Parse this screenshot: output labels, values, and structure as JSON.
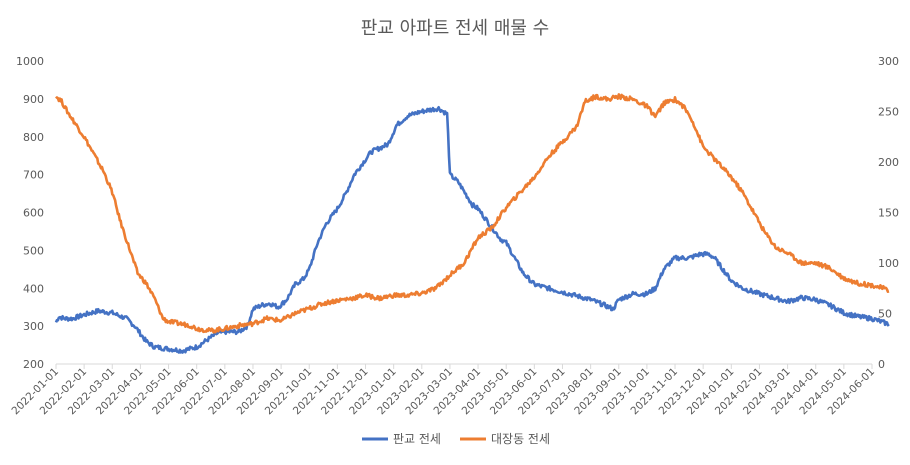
{
  "chart_data": {
    "type": "line",
    "title": "판교 아파트 전세 매물 수",
    "x_labels": [
      "2022-01-01",
      "2022-02-01",
      "2022-03-01",
      "2022-04-01",
      "2022-05-01",
      "2022-06-01",
      "2022-07-01",
      "2022-08-01",
      "2022-09-01",
      "2022-10-01",
      "2022-11-01",
      "2022-12-01",
      "2023-01-01",
      "2023-02-01",
      "2023-03-01",
      "2023-04-01",
      "2023-05-01",
      "2023-06-01",
      "2023-07-01",
      "2023-08-01",
      "2023-09-01",
      "2023-10-01",
      "2023-11-01",
      "2023-12-01",
      "2024-01-01",
      "2024-02-01",
      "2024-03-01",
      "2024-04-01",
      "2024-05-01",
      "2024-06-01"
    ],
    "y_left": {
      "min": 200,
      "max": 1000,
      "ticks": [
        "200",
        "300",
        "400",
        "500",
        "600",
        "700",
        "800",
        "900",
        "1000"
      ]
    },
    "y_right": {
      "min": 0,
      "max": 300,
      "ticks": [
        "0",
        "50",
        "100",
        "150",
        "200",
        "250",
        "300"
      ]
    },
    "grid": false,
    "legend_position": "bottom",
    "colors": {
      "pangyo": "#4472C4",
      "daejang": "#ED7D31",
      "axis_text": "#595959",
      "title": "#595959"
    },
    "series": [
      {
        "name": "판교 전세",
        "axis": "left",
        "key_points": [
          [
            0,
            310
          ],
          [
            0.1,
            325
          ],
          [
            0.3,
            320
          ],
          [
            0.6,
            320
          ],
          [
            1.0,
            330
          ],
          [
            1.5,
            340
          ],
          [
            2.0,
            335
          ],
          [
            2.5,
            320
          ],
          [
            2.8,
            300
          ],
          [
            3.0,
            280
          ],
          [
            3.2,
            260
          ],
          [
            3.5,
            245
          ],
          [
            4.0,
            240
          ],
          [
            4.5,
            235
          ],
          [
            5.0,
            245
          ],
          [
            5.4,
            265
          ],
          [
            5.7,
            280
          ],
          [
            6.0,
            285
          ],
          [
            6.5,
            285
          ],
          [
            6.8,
            300
          ],
          [
            7.0,
            345
          ],
          [
            7.3,
            355
          ],
          [
            7.6,
            360
          ],
          [
            7.9,
            350
          ],
          [
            8.2,
            370
          ],
          [
            8.5,
            410
          ],
          [
            8.8,
            425
          ],
          [
            9.0,
            450
          ],
          [
            9.3,
            520
          ],
          [
            9.6,
            570
          ],
          [
            10.0,
            610
          ],
          [
            10.3,
            650
          ],
          [
            10.6,
            700
          ],
          [
            10.9,
            730
          ],
          [
            11.2,
            760
          ],
          [
            11.5,
            770
          ],
          [
            11.8,
            780
          ],
          [
            12.1,
            830
          ],
          [
            12.5,
            855
          ],
          [
            12.9,
            865
          ],
          [
            13.2,
            870
          ],
          [
            13.6,
            875
          ],
          [
            13.9,
            860
          ],
          [
            14.0,
            700
          ],
          [
            14.3,
            680
          ],
          [
            14.8,
            620
          ],
          [
            15.0,
            610
          ],
          [
            15.4,
            570
          ],
          [
            15.8,
            530
          ],
          [
            16.0,
            520
          ],
          [
            16.3,
            480
          ],
          [
            16.6,
            440
          ],
          [
            17.0,
            410
          ],
          [
            17.5,
            400
          ],
          [
            18.0,
            390
          ],
          [
            18.5,
            380
          ],
          [
            19.0,
            370
          ],
          [
            19.5,
            355
          ],
          [
            19.8,
            345
          ],
          [
            20.0,
            370
          ],
          [
            20.5,
            385
          ],
          [
            21.0,
            385
          ],
          [
            21.3,
            400
          ],
          [
            21.6,
            450
          ],
          [
            22.0,
            480
          ],
          [
            22.5,
            480
          ],
          [
            22.9,
            490
          ],
          [
            23.2,
            490
          ],
          [
            23.4,
            480
          ],
          [
            23.7,
            450
          ],
          [
            24.0,
            420
          ],
          [
            24.4,
            400
          ],
          [
            25.0,
            385
          ],
          [
            25.5,
            375
          ],
          [
            26.0,
            365
          ],
          [
            26.5,
            375
          ],
          [
            27.0,
            370
          ],
          [
            27.5,
            355
          ],
          [
            28.0,
            335
          ],
          [
            28.5,
            325
          ],
          [
            29.0,
            320
          ],
          [
            29.4,
            310
          ],
          [
            29.6,
            305
          ]
        ]
      },
      {
        "name": "대장동 전세",
        "axis": "right",
        "key_points": [
          [
            0,
            265
          ],
          [
            0.2,
            260
          ],
          [
            0.4,
            250
          ],
          [
            1.0,
            225
          ],
          [
            1.3,
            210
          ],
          [
            1.7,
            190
          ],
          [
            2.0,
            170
          ],
          [
            2.3,
            140
          ],
          [
            2.6,
            115
          ],
          [
            2.9,
            90
          ],
          [
            3.2,
            80
          ],
          [
            3.5,
            65
          ],
          [
            3.8,
            45
          ],
          [
            4.0,
            42
          ],
          [
            4.4,
            40
          ],
          [
            4.8,
            38
          ],
          [
            5.0,
            35
          ],
          [
            5.5,
            33
          ],
          [
            6.0,
            35
          ],
          [
            6.5,
            38
          ],
          [
            7.0,
            40
          ],
          [
            7.5,
            45
          ],
          [
            8.0,
            43
          ],
          [
            8.5,
            50
          ],
          [
            9.0,
            55
          ],
          [
            9.5,
            60
          ],
          [
            10.0,
            63
          ],
          [
            10.5,
            65
          ],
          [
            11.0,
            68
          ],
          [
            11.5,
            65
          ],
          [
            12.0,
            68
          ],
          [
            12.5,
            68
          ],
          [
            13.0,
            70
          ],
          [
            13.5,
            75
          ],
          [
            14.0,
            88
          ],
          [
            14.5,
            100
          ],
          [
            15.0,
            125
          ],
          [
            15.5,
            135
          ],
          [
            16.0,
            155
          ],
          [
            16.5,
            170
          ],
          [
            17.0,
            185
          ],
          [
            17.5,
            205
          ],
          [
            18.0,
            220
          ],
          [
            18.5,
            235
          ],
          [
            18.8,
            260
          ],
          [
            19.2,
            265
          ],
          [
            19.6,
            262
          ],
          [
            20.0,
            265
          ],
          [
            20.5,
            262
          ],
          [
            21.0,
            255
          ],
          [
            21.3,
            245
          ],
          [
            21.6,
            258
          ],
          [
            22.0,
            262
          ],
          [
            22.3,
            255
          ],
          [
            22.6,
            242
          ],
          [
            23.0,
            215
          ],
          [
            23.5,
            200
          ],
          [
            24.0,
            185
          ],
          [
            24.4,
            170
          ],
          [
            24.8,
            150
          ],
          [
            25.2,
            130
          ],
          [
            25.6,
            115
          ],
          [
            26.0,
            110
          ],
          [
            26.5,
            100
          ],
          [
            27.0,
            100
          ],
          [
            27.5,
            95
          ],
          [
            28.0,
            85
          ],
          [
            28.5,
            80
          ],
          [
            29.0,
            78
          ],
          [
            29.4,
            75
          ],
          [
            29.6,
            72
          ]
        ]
      }
    ]
  }
}
